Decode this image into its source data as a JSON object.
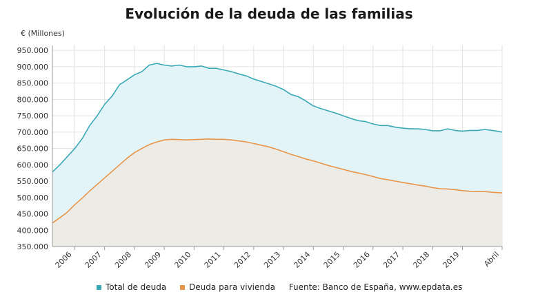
{
  "chart_data": {
    "type": "area",
    "title": "Evolución de la deuda de las familias",
    "ylabel": "€ (Millones)",
    "xlabel": "",
    "ylim": [
      350000,
      965000
    ],
    "yticks": [
      350000,
      400000,
      450000,
      500000,
      550000,
      600000,
      650000,
      700000,
      750000,
      800000,
      850000,
      900000,
      950000
    ],
    "ytick_labels": [
      "350.000",
      "400.000",
      "450.000",
      "500.000",
      "550.000",
      "600.000",
      "650.000",
      "700.000",
      "750.000",
      "800.000",
      "850.000",
      "900.000",
      "950.000"
    ],
    "xlim": [
      2005.25,
      2020.33
    ],
    "xticks": [
      2006,
      2007,
      2008,
      2009,
      2010,
      2011,
      2012,
      2013,
      2014,
      2015,
      2016,
      2017,
      2018,
      2019,
      2020.33
    ],
    "xtick_labels": [
      "2006",
      "2007",
      "2008",
      "2009",
      "2010",
      "2011",
      "2012",
      "2013",
      "2014",
      "2015",
      "2016",
      "2017",
      "2018",
      "2019",
      "Abril"
    ],
    "grid": true,
    "legend_position": "bottom",
    "series": [
      {
        "name": "Total de deuda",
        "color": "#3aa8b5",
        "fill": "#e3f4f8",
        "x": [
          2005.25,
          2005.5,
          2005.75,
          2006.0,
          2006.25,
          2006.5,
          2006.75,
          2007.0,
          2007.25,
          2007.5,
          2007.75,
          2008.0,
          2008.25,
          2008.5,
          2008.75,
          2009.0,
          2009.25,
          2009.5,
          2009.75,
          2010.0,
          2010.25,
          2010.5,
          2010.75,
          2011.0,
          2011.25,
          2011.5,
          2011.75,
          2012.0,
          2012.25,
          2012.5,
          2012.75,
          2013.0,
          2013.25,
          2013.5,
          2013.75,
          2014.0,
          2014.25,
          2014.5,
          2014.75,
          2015.0,
          2015.25,
          2015.5,
          2015.75,
          2016.0,
          2016.25,
          2016.5,
          2016.75,
          2017.0,
          2017.25,
          2017.5,
          2017.75,
          2018.0,
          2018.25,
          2018.5,
          2018.75,
          2019.0,
          2019.25,
          2019.5,
          2019.75,
          2020.0,
          2020.33
        ],
        "values": [
          578000,
          600000,
          625000,
          650000,
          680000,
          720000,
          750000,
          785000,
          810000,
          845000,
          860000,
          875000,
          885000,
          905000,
          910000,
          905000,
          902000,
          905000,
          900000,
          900000,
          902000,
          895000,
          895000,
          890000,
          885000,
          878000,
          872000,
          862000,
          855000,
          848000,
          840000,
          830000,
          815000,
          808000,
          795000,
          780000,
          772000,
          765000,
          758000,
          750000,
          742000,
          735000,
          732000,
          725000,
          720000,
          720000,
          715000,
          712000,
          710000,
          710000,
          708000,
          704000,
          704000,
          710000,
          705000,
          703000,
          705000,
          705000,
          708000,
          705000,
          700000
        ]
      },
      {
        "name": "Deuda para vivienda",
        "color": "#e8954a",
        "fill": "#ecebe5",
        "x": [
          2005.25,
          2005.5,
          2005.75,
          2006.0,
          2006.25,
          2006.5,
          2006.75,
          2007.0,
          2007.25,
          2007.5,
          2007.75,
          2008.0,
          2008.25,
          2008.5,
          2008.75,
          2009.0,
          2009.25,
          2009.5,
          2009.75,
          2010.0,
          2010.25,
          2010.5,
          2010.75,
          2011.0,
          2011.25,
          2011.5,
          2011.75,
          2012.0,
          2012.25,
          2012.5,
          2012.75,
          2013.0,
          2013.25,
          2013.5,
          2013.75,
          2014.0,
          2014.25,
          2014.5,
          2014.75,
          2015.0,
          2015.25,
          2015.5,
          2015.75,
          2016.0,
          2016.25,
          2016.5,
          2016.75,
          2017.0,
          2017.25,
          2017.5,
          2017.75,
          2018.0,
          2018.25,
          2018.5,
          2018.75,
          2019.0,
          2019.25,
          2019.5,
          2019.75,
          2020.0,
          2020.33
        ],
        "values": [
          422000,
          438000,
          455000,
          478000,
          498000,
          520000,
          540000,
          560000,
          580000,
          600000,
          620000,
          637000,
          650000,
          662000,
          670000,
          676000,
          678000,
          677000,
          676000,
          677000,
          678000,
          679000,
          678000,
          678000,
          676000,
          673000,
          670000,
          665000,
          660000,
          655000,
          648000,
          640000,
          632000,
          625000,
          618000,
          612000,
          605000,
          598000,
          592000,
          586000,
          580000,
          575000,
          570000,
          564000,
          558000,
          554000,
          550000,
          546000,
          542000,
          538000,
          535000,
          530000,
          527000,
          526000,
          524000,
          521000,
          519000,
          518000,
          518000,
          516000,
          514000
        ]
      }
    ],
    "source_note": "Fuente: Banco de España, www.epdata.es"
  },
  "colors": {
    "grid": "#e2e2e2",
    "axis": "#999999",
    "text": "#333333",
    "background": "#ffffff"
  }
}
